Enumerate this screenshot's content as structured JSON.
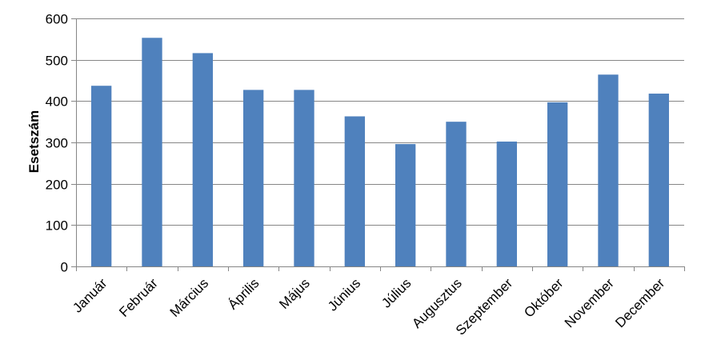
{
  "chart_data": {
    "type": "bar",
    "title": "",
    "xlabel": "",
    "ylabel": "Esetszám",
    "categories": [
      "Január",
      "Február",
      "Március",
      "Április",
      "Május",
      "Június",
      "Július",
      "Augusztus",
      "Szeptember",
      "Október",
      "November",
      "December"
    ],
    "values": [
      437,
      553,
      516,
      427,
      427,
      363,
      296,
      350,
      302,
      397,
      464,
      418
    ],
    "ylim": [
      0,
      600
    ],
    "yticks": [
      0,
      100,
      200,
      300,
      400,
      500,
      600
    ],
    "grid": true,
    "legend": "none",
    "bar_color": "#4F81BD",
    "gridline_color": "#868686",
    "axis_color": "#868686"
  }
}
